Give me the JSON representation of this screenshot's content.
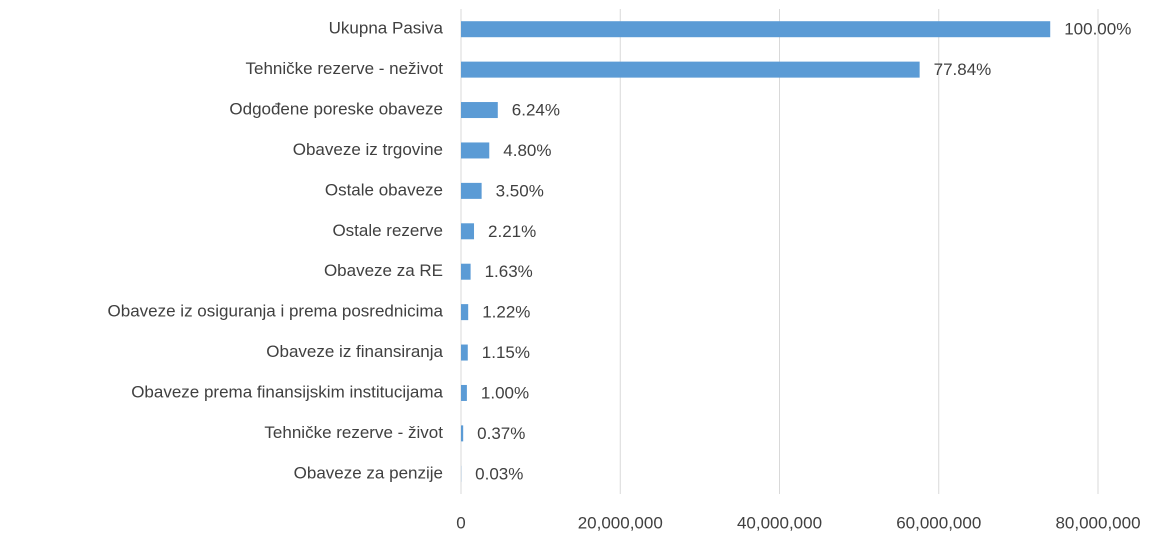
{
  "chart_data": {
    "type": "hbar",
    "categories": [
      "Ukupna Pasiva",
      "Tehničke rezerve - neživot",
      "Odgođene poreske obaveze",
      "Obaveze iz trgovine",
      "Ostale obaveze",
      "Ostale rezerve",
      "Obaveze za RE",
      "Obaveze iz osiguranja i prema posrednicima",
      "Obaveze iz finansiranja",
      "Obaveze prema finansijskim institucijama",
      "Tehničke rezerve - život",
      "Obaveze za penzije"
    ],
    "values": [
      74000000,
      57600000,
      4620000,
      3550000,
      2590000,
      1635000,
      1206000,
      903000,
      851000,
      740000,
      274000,
      22000
    ],
    "value_labels": [
      "100.00%",
      "77.84%",
      "6.24%",
      "4.80%",
      "3.50%",
      "2.21%",
      "1.63%",
      "1.22%",
      "1.15%",
      "1.00%",
      "0.37%",
      "0.03%"
    ],
    "color": "#5b9bd5",
    "xlim": [
      0,
      80000000
    ],
    "xticks": [
      0,
      {
        "value": 20000000,
        "label": "20,000,000"
      },
      {
        "value": 40000000,
        "label": "40,000,000"
      },
      {
        "value": 60000000,
        "label": "60,000,000"
      },
      {
        "value": 80000000,
        "label": "80,000,000"
      }
    ],
    "grid": true
  }
}
